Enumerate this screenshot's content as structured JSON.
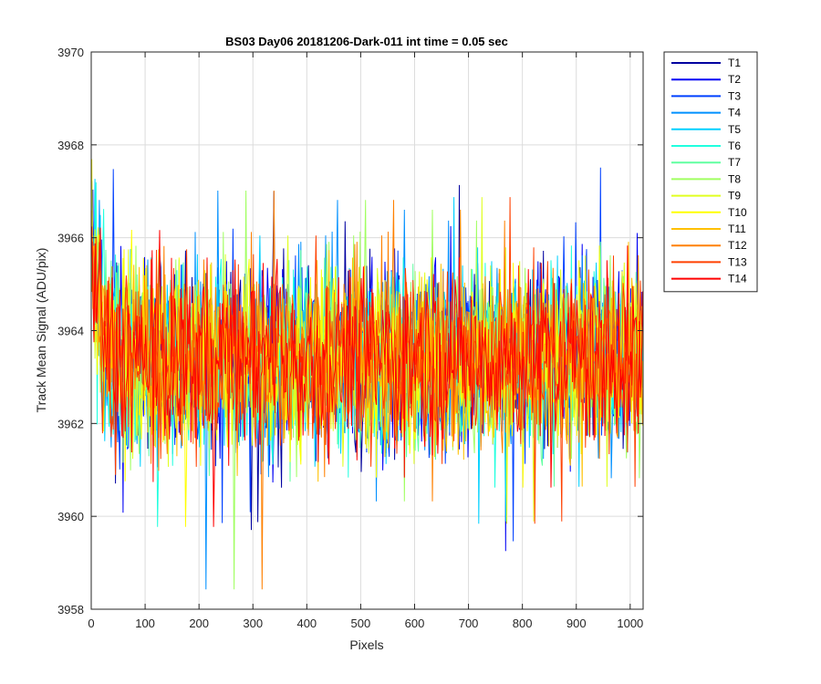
{
  "chart_data": {
    "type": "line",
    "title": "BS03 Day06 20181206-Dark-011 int time = 0.05 sec",
    "xlabel": "Pixels",
    "ylabel": "Track Mean Signal (ADU/pix)",
    "xlim": [
      0,
      1024
    ],
    "ylim": [
      3958,
      3970
    ],
    "xticks": [
      0,
      100,
      200,
      300,
      400,
      500,
      600,
      700,
      800,
      900,
      1000
    ],
    "yticks": [
      3958,
      3960,
      3962,
      3964,
      3966,
      3968,
      3970
    ],
    "grid": true,
    "legend_position": "outside-right-top",
    "baseline_mean": 3963.4,
    "noise_half_width": 1.6,
    "start_value": 3966.5,
    "series": [
      {
        "name": "T1",
        "color": "#0000a0"
      },
      {
        "name": "T2",
        "color": "#0000f5"
      },
      {
        "name": "T3",
        "color": "#0040ff"
      },
      {
        "name": "T4",
        "color": "#0090ff"
      },
      {
        "name": "T5",
        "color": "#00d0ff"
      },
      {
        "name": "T6",
        "color": "#20ffdf"
      },
      {
        "name": "T7",
        "color": "#60ffa0"
      },
      {
        "name": "T8",
        "color": "#a0ff60"
      },
      {
        "name": "T9",
        "color": "#e0ff20"
      },
      {
        "name": "T10",
        "color": "#ffff00"
      },
      {
        "name": "T11",
        "color": "#ffc000"
      },
      {
        "name": "T12",
        "color": "#ff8000"
      },
      {
        "name": "T13",
        "color": "#ff4000"
      },
      {
        "name": "T14",
        "color": "#ff0000"
      }
    ]
  }
}
